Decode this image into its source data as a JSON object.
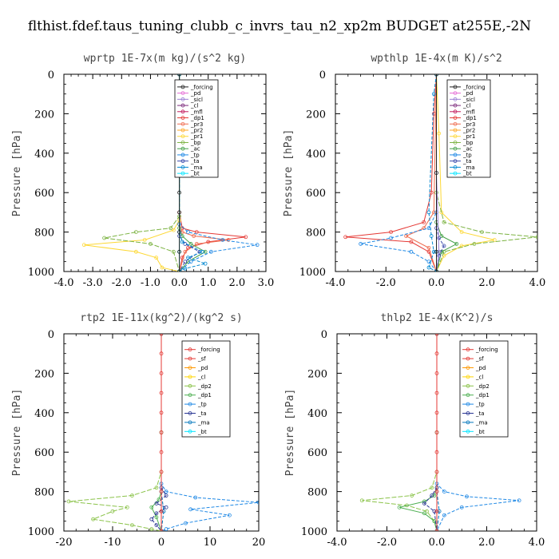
{
  "page_title": "flthist.fdef.taus_tuning_clubb_c_invrs_tau_n2_xp2m  BUDGET at255E,-2N",
  "colors": {
    "_forcing": "#222222",
    "_pd": "#e56bd5",
    "_sicl": "#9b7fd4",
    "_cl_a": "#7d2b7d",
    "_mfl": "#c2185b",
    "_dp1_a": "#e53935",
    "_pr3": "#ef6c4f",
    "_pr2": "#ffa726",
    "_pr1": "#fdd835",
    "_bp": "#7cb342",
    "_ac": "#43a047",
    "_tp": "#1e88e5",
    "_ta": "#3949ab",
    "_ma": "#0288d1",
    "_bt": "#00e5ff",
    "_forcing_r": "#e53935",
    "_sf": "#e53935",
    "_pd_r": "#ff9800",
    "_cl_r": "#ffd600",
    "_dp2": "#8bc34a",
    "_dp1_g": "#4caf50",
    "_tp_r": "#1e88e5",
    "_ta_r": "#283593",
    "_ma_r": "#0277bd",
    "_bt_r": "#00e5ff"
  },
  "chart_data": [
    {
      "type": "line",
      "title": "wprtp   1E-7x(m kg)/(s^2 kg)",
      "ylabel": "Pressure [hPa]",
      "xlim": [
        -4.0,
        3.0
      ],
      "ylim": [
        1000,
        0
      ],
      "xticks": [
        "-4.0",
        "-3.0",
        "-2.0",
        "-1.0",
        "0.0",
        "1.0",
        "2.0",
        "3.0"
      ],
      "yticks": [
        "0",
        "200",
        "400",
        "600",
        "800",
        "1000"
      ],
      "legend": [
        "_forcing",
        "_pd",
        "_sicl",
        "_cl",
        "_mfl",
        "_dp1",
        "_pr3",
        "_pr2",
        "_pr1",
        "_bp",
        "_ac",
        "_tp",
        "_ta",
        "_ma",
        "_bt"
      ],
      "series": [
        {
          "name": "_forcing",
          "x": [
            0,
            0,
            0,
            0,
            0,
            0,
            0,
            0,
            0,
            0,
            0
          ],
          "y": [
            0,
            100,
            200,
            300,
            400,
            500,
            600,
            700,
            800,
            900,
            1000
          ]
        },
        {
          "name": "_dp1",
          "x": [
            0,
            0,
            0.1,
            0.6,
            2.3,
            1.0,
            0.3,
            0.1,
            0
          ],
          "y": [
            0,
            700,
            780,
            800,
            825,
            850,
            880,
            930,
            1000
          ]
        },
        {
          "name": "_pr3",
          "x": [
            0,
            0,
            0.1,
            0.5,
            1.7,
            0.6,
            0.2,
            0
          ],
          "y": [
            0,
            760,
            800,
            820,
            840,
            860,
            900,
            1000
          ]
        },
        {
          "name": "_pr1",
          "x": [
            0,
            0,
            -0.2,
            -1.2,
            -3.3,
            -1.5,
            -0.8,
            -0.6,
            0
          ],
          "y": [
            0,
            740,
            790,
            840,
            865,
            900,
            930,
            980,
            1000
          ]
        },
        {
          "name": "_bp",
          "x": [
            0,
            0,
            -0.3,
            -1.5,
            -2.6,
            -1.0,
            -0.2,
            0
          ],
          "y": [
            0,
            720,
            780,
            800,
            830,
            860,
            900,
            1000
          ]
        },
        {
          "name": "_ac",
          "x": [
            0,
            0,
            0.1,
            0.4,
            0.9,
            0.3,
            0
          ],
          "y": [
            0,
            780,
            820,
            860,
            900,
            950,
            1000
          ]
        },
        {
          "name": "_tp",
          "x": [
            0,
            0,
            0.3,
            1.5,
            2.7,
            1.1,
            0.4,
            0
          ],
          "y": [
            0,
            760,
            800,
            840,
            865,
            900,
            950,
            1000
          ]
        },
        {
          "name": "_ta",
          "x": [
            0,
            0,
            0.2,
            0.7,
            0.2,
            0
          ],
          "y": [
            0,
            820,
            860,
            900,
            950,
            1000
          ]
        },
        {
          "name": "_ma",
          "x": [
            0,
            0,
            0.1,
            0.8,
            0.3,
            0.9,
            0.2,
            0
          ],
          "y": [
            0,
            800,
            850,
            900,
            930,
            960,
            985,
            1000
          ]
        },
        {
          "name": "_bt",
          "x": [
            0,
            0,
            0,
            0
          ],
          "y": [
            0,
            500,
            900,
            1000
          ]
        }
      ]
    },
    {
      "type": "line",
      "title": "wpthlp   1E-4x(m K)/s^2",
      "ylabel": "Pressure [hPa]",
      "xlim": [
        -4.0,
        4.0
      ],
      "ylim": [
        1000,
        0
      ],
      "xticks": [
        "-4.0",
        "-2.0",
        "0.0",
        "2.0",
        "4.0"
      ],
      "yticks": [
        "0",
        "200",
        "400",
        "600",
        "800",
        "1000"
      ],
      "legend": [
        "_forcing",
        "_pd",
        "_sicl",
        "_cl",
        "_mfl",
        "_dp1",
        "_pr3",
        "_pr2",
        "_pr1",
        "_bp",
        "_ac",
        "_tp",
        "_ta",
        "_ma",
        "_bt"
      ],
      "series": [
        {
          "name": "_forcing",
          "x": [
            0,
            0,
            0,
            0
          ],
          "y": [
            0,
            500,
            900,
            1000
          ]
        },
        {
          "name": "_dp1",
          "x": [
            0,
            -0.1,
            -0.2,
            -0.5,
            -1.8,
            -3.6,
            -1.0,
            -0.3,
            0
          ],
          "y": [
            0,
            200,
            600,
            750,
            800,
            825,
            850,
            900,
            1000
          ]
        },
        {
          "name": "_pr3",
          "x": [
            0,
            -0.1,
            -0.5,
            -1.2,
            -0.3,
            0
          ],
          "y": [
            0,
            700,
            780,
            820,
            880,
            1000
          ]
        },
        {
          "name": "_pr1",
          "x": [
            0,
            0.1,
            0.2,
            1.0,
            2.3,
            1.0,
            0.3,
            0
          ],
          "y": [
            0,
            300,
            700,
            800,
            840,
            870,
            920,
            1000
          ]
        },
        {
          "name": "_bp",
          "x": [
            0,
            0,
            0.3,
            1.8,
            4.0,
            1.5,
            0.3,
            0
          ],
          "y": [
            0,
            600,
            750,
            800,
            825,
            860,
            900,
            1000
          ]
        },
        {
          "name": "_ac",
          "x": [
            0,
            0,
            0.2,
            0.8,
            0.2,
            0
          ],
          "y": [
            0,
            750,
            820,
            860,
            900,
            1000
          ]
        },
        {
          "name": "_tp",
          "x": [
            0,
            0,
            -0.3,
            -1.8,
            -3.0,
            -1.0,
            -0.3,
            0
          ],
          "y": [
            0,
            700,
            780,
            830,
            860,
            900,
            950,
            1000
          ]
        },
        {
          "name": "_ta",
          "x": [
            0,
            0,
            0.1,
            0.3,
            0.1,
            0
          ],
          "y": [
            0,
            780,
            830,
            870,
            920,
            1000
          ]
        },
        {
          "name": "_ma",
          "x": [
            0,
            -0.1,
            -0.3,
            -0.2,
            -0.1,
            -0.3,
            0
          ],
          "y": [
            0,
            100,
            700,
            820,
            900,
            980,
            1000
          ]
        },
        {
          "name": "_sicl",
          "x": [
            0,
            0,
            0.1,
            0
          ],
          "y": [
            0,
            500,
            900,
            1000
          ]
        },
        {
          "name": "_bt",
          "x": [
            0,
            0,
            0
          ],
          "y": [
            0,
            900,
            1000
          ]
        }
      ]
    },
    {
      "type": "line",
      "title": "rtp2   1E-11x(kg^2)/(kg^2 s)",
      "ylabel": "Pressure [hPa]",
      "xlim": [
        -20,
        20
      ],
      "ylim": [
        1000,
        0
      ],
      "xticks": [
        "-20",
        "-10",
        "0",
        "10",
        "20"
      ],
      "yticks": [
        "0",
        "200",
        "400",
        "600",
        "800",
        "1000"
      ],
      "legend": [
        "_forcing",
        "_sf",
        "_pd",
        "_cl",
        "_dp2",
        "_dp1",
        "_tp",
        "_ta",
        "_ma",
        "_bt"
      ],
      "series": [
        {
          "name": "_forcing",
          "x": [
            0,
            0,
            0,
            0,
            0,
            0,
            0,
            0,
            0,
            0,
            0
          ],
          "y": [
            0,
            100,
            200,
            300,
            400,
            500,
            600,
            700,
            800,
            900,
            1000
          ]
        },
        {
          "name": "_sf",
          "x": [
            0,
            0,
            0
          ],
          "y": [
            0,
            500,
            1000
          ]
        },
        {
          "name": "_pd",
          "x": [
            0,
            0,
            0
          ],
          "y": [
            0,
            500,
            1000
          ]
        },
        {
          "name": "_cl",
          "x": [
            0,
            0,
            0
          ],
          "y": [
            0,
            500,
            1000
          ]
        },
        {
          "name": "_dp2",
          "x": [
            0,
            0,
            -1,
            -6,
            -19,
            -7,
            -10,
            -14,
            -6,
            -2,
            0
          ],
          "y": [
            0,
            700,
            780,
            820,
            850,
            880,
            900,
            940,
            970,
            990,
            1000
          ]
        },
        {
          "name": "_dp1",
          "x": [
            0,
            0,
            -0.5,
            -2,
            -1,
            0
          ],
          "y": [
            0,
            800,
            840,
            880,
            930,
            1000
          ]
        },
        {
          "name": "_tp",
          "x": [
            0,
            0,
            1,
            7,
            20,
            6,
            14,
            5,
            1,
            0
          ],
          "y": [
            0,
            760,
            800,
            830,
            855,
            890,
            920,
            960,
            990,
            1000
          ]
        },
        {
          "name": "_ta",
          "x": [
            0,
            0,
            1,
            -1,
            1,
            -1,
            -2,
            -1,
            0
          ],
          "y": [
            0,
            780,
            820,
            860,
            880,
            910,
            940,
            970,
            1000
          ]
        },
        {
          "name": "_ma",
          "x": [
            0,
            0,
            0.5,
            0
          ],
          "y": [
            0,
            800,
            900,
            1000
          ]
        },
        {
          "name": "_bt",
          "x": [
            0,
            0,
            0
          ],
          "y": [
            0,
            500,
            1000
          ]
        }
      ]
    },
    {
      "type": "line",
      "title": "thlp2   1E-4x(K^2)/s",
      "ylabel": "Pressure [hPa]",
      "xlim": [
        -4.0,
        4.0
      ],
      "ylim": [
        1000,
        0
      ],
      "xticks": [
        "-4.0",
        "-2.0",
        "0.0",
        "2.0",
        "4.0"
      ],
      "yticks": [
        "0",
        "200",
        "400",
        "600",
        "800",
        "1000"
      ],
      "legend": [
        "_forcing",
        "_sf",
        "_pd",
        "_cl",
        "_dp2",
        "_dp1",
        "_tp",
        "_ta",
        "_ma",
        "_bt"
      ],
      "series": [
        {
          "name": "_forcing",
          "x": [
            0,
            0,
            0,
            0,
            0,
            0,
            0,
            0,
            0,
            0,
            0
          ],
          "y": [
            0,
            100,
            200,
            300,
            400,
            500,
            600,
            700,
            800,
            900,
            1000
          ]
        },
        {
          "name": "_sf",
          "x": [
            0,
            0,
            0
          ],
          "y": [
            0,
            500,
            1000
          ]
        },
        {
          "name": "_pd",
          "x": [
            0,
            0,
            0
          ],
          "y": [
            0,
            500,
            1000
          ]
        },
        {
          "name": "_cl",
          "x": [
            0,
            0,
            0
          ],
          "y": [
            0,
            500,
            1000
          ]
        },
        {
          "name": "_dp2",
          "x": [
            0,
            0,
            -0.2,
            -1.0,
            -3.0,
            -1.2,
            -0.4,
            -0.1,
            0
          ],
          "y": [
            0,
            700,
            780,
            820,
            845,
            870,
            900,
            950,
            1000
          ]
        },
        {
          "name": "_dp1",
          "x": [
            0,
            0,
            -0.1,
            -0.5,
            -1.5,
            -0.5,
            -0.1,
            0
          ],
          "y": [
            0,
            780,
            820,
            850,
            880,
            910,
            950,
            1000
          ]
        },
        {
          "name": "_tp",
          "x": [
            0,
            0,
            0.3,
            1.2,
            3.3,
            1.0,
            0.3,
            0
          ],
          "y": [
            0,
            760,
            800,
            825,
            845,
            880,
            920,
            1000
          ]
        },
        {
          "name": "_ta",
          "x": [
            0,
            0,
            -0.2,
            -0.5,
            -0.1,
            0
          ],
          "y": [
            0,
            780,
            820,
            860,
            900,
            1000
          ]
        },
        {
          "name": "_ma",
          "x": [
            0,
            0,
            0.1,
            0
          ],
          "y": [
            0,
            800,
            900,
            1000
          ]
        },
        {
          "name": "_bt",
          "x": [
            0,
            0,
            0
          ],
          "y": [
            0,
            500,
            1000
          ]
        }
      ]
    }
  ]
}
